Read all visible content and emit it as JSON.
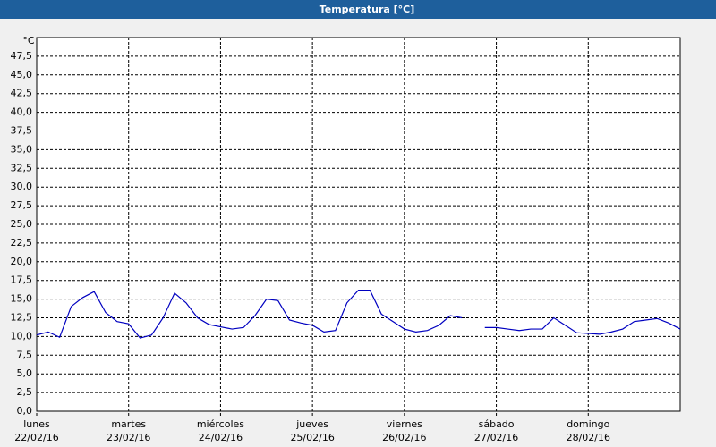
{
  "chart_data": {
    "type": "line",
    "title": "Temperatura [°C]",
    "ylabel": "°C",
    "x": [
      0,
      3,
      6,
      9,
      12,
      15,
      18,
      21,
      24,
      27,
      30,
      33,
      36,
      39,
      42,
      45,
      48,
      51,
      54,
      57,
      60,
      63,
      66,
      69,
      72,
      75,
      78,
      81,
      84,
      87,
      90,
      93,
      96,
      99,
      102,
      105,
      108,
      111,
      114,
      117,
      120,
      123,
      126,
      129,
      132,
      135,
      138,
      141,
      144,
      147,
      150,
      153,
      156,
      159,
      162,
      165,
      168
    ],
    "series": [
      {
        "name": "Temperatura",
        "color": "#0000c0",
        "values": [
          10.2,
          10.6,
          9.9,
          14.0,
          15.2,
          16.0,
          13.2,
          12.0,
          11.7,
          9.8,
          10.2,
          12.5,
          15.8,
          14.5,
          12.5,
          11.6,
          11.3,
          11.0,
          11.2,
          12.8,
          15.0,
          14.8,
          12.2,
          11.8,
          11.5,
          10.6,
          10.8,
          14.5,
          16.2,
          16.2,
          13.0,
          12.0,
          11.0,
          10.6,
          10.8,
          11.5,
          12.8,
          12.5,
          null,
          11.2,
          11.2,
          11.0,
          10.8,
          11.0,
          11.0,
          12.5,
          11.5,
          10.5,
          10.4,
          10.3,
          10.6,
          11.0,
          12.0,
          12.2,
          12.4,
          11.8,
          11.0
        ]
      }
    ],
    "xlim": [
      0,
      168
    ],
    "xticks": [
      {
        "value": 0,
        "label": "lunes"
      },
      {
        "value": 24,
        "label": "martes"
      },
      {
        "value": 48,
        "label": "miércoles"
      },
      {
        "value": 72,
        "label": "jueves"
      },
      {
        "value": 96,
        "label": "viernes"
      },
      {
        "value": 120,
        "label": "sábado"
      },
      {
        "value": 144,
        "label": "domingo"
      }
    ],
    "xtick_dates": [
      "22/02/16",
      "23/02/16",
      "24/02/16",
      "25/02/16",
      "26/02/16",
      "27/02/16",
      "28/02/16"
    ],
    "ylim": [
      0,
      50
    ],
    "yticks": [
      {
        "value": 0,
        "label": "0,0"
      },
      {
        "value": 2.5,
        "label": "2,5"
      },
      {
        "value": 5,
        "label": "5,0"
      },
      {
        "value": 7.5,
        "label": "7,5"
      },
      {
        "value": 10,
        "label": "10,0"
      },
      {
        "value": 12.5,
        "label": "12,5"
      },
      {
        "value": 15,
        "label": "15,0"
      },
      {
        "value": 17.5,
        "label": "17,5"
      },
      {
        "value": 20,
        "label": "20,0"
      },
      {
        "value": 22.5,
        "label": "22,5"
      },
      {
        "value": 25,
        "label": "25,0"
      },
      {
        "value": 27.5,
        "label": "27,5"
      },
      {
        "value": 30,
        "label": "30,0"
      },
      {
        "value": 32.5,
        "label": "32,5"
      },
      {
        "value": 35,
        "label": "35,0"
      },
      {
        "value": 37.5,
        "label": "37,5"
      },
      {
        "value": 40,
        "label": "40,0"
      },
      {
        "value": 42.5,
        "label": "42,5"
      },
      {
        "value": 45,
        "label": "45,0"
      },
      {
        "value": 47.5,
        "label": "47,5"
      }
    ],
    "grid": true
  }
}
